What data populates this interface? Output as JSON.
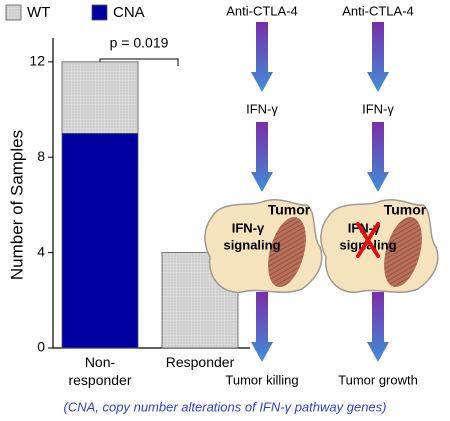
{
  "chart_data": {
    "type": "bar",
    "stacked": true,
    "categories": [
      "Non-\nresponder",
      "Responder"
    ],
    "series": [
      {
        "name": "WT",
        "color": "#d9d9d9",
        "values": [
          3,
          4
        ]
      },
      {
        "name": "CNA",
        "color": "#0000a0",
        "values": [
          9,
          0
        ]
      }
    ],
    "ylim": [
      0,
      13
    ],
    "yticks": [
      0,
      4,
      8,
      12
    ],
    "ylabel": "Number of Samples",
    "annotation": "p = 0.019"
  },
  "diagram": {
    "columns": [
      {
        "input": "Anti-CTLA-4",
        "mediator": "IFN-γ",
        "cell_label": "Tumor",
        "signaling": [
          "IFN-γ",
          "signaling"
        ],
        "outcome": "Tumor killing"
      },
      {
        "input": "Anti-CTLA-4",
        "mediator": "IFN-γ",
        "cell_label": "Tumor",
        "signaling": [
          "IFN-γ",
          "signaling"
        ],
        "outcome": "Tumor growth"
      }
    ],
    "caption": "(CNA, copy number alterations of IFN-γ pathway genes)"
  }
}
